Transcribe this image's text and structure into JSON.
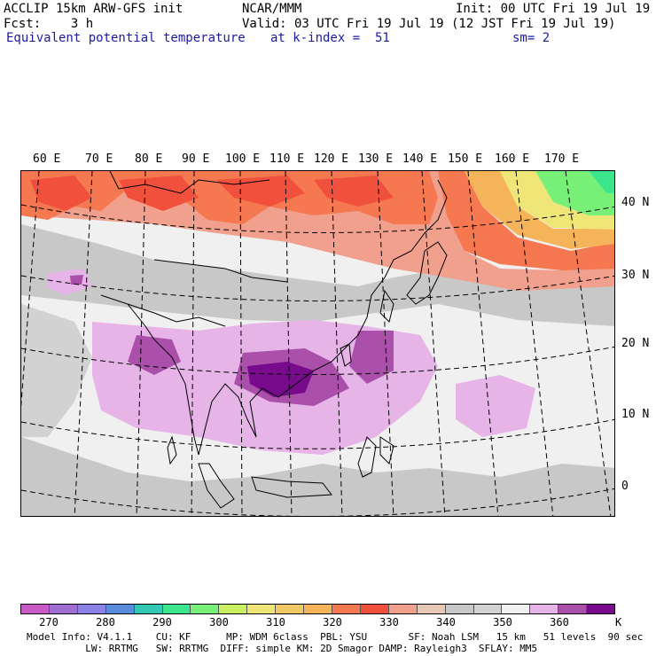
{
  "header": {
    "model": "ACCLIP 15km ARW-GFS init",
    "org": "NCAR/MMM",
    "init": "Init: 00 UTC Fri 19 Jul 19",
    "fcst": "Fcst:    3 h",
    "valid": "Valid: 03 UTC Fri 19 Jul 19 (12 JST Fri 19 Jul 19)",
    "field": "Equivalent potential temperature",
    "level": "at k-index =  51",
    "smooth": "sm= 2"
  },
  "map": {
    "lon_labels": [
      "60 E",
      "70 E",
      "80 E",
      "90 E",
      "100 E",
      "110 E",
      "120 E",
      "130 E",
      "140 E",
      "150 E",
      "160 E",
      "170 E"
    ],
    "lat_labels": [
      "40 N",
      "30 N",
      "20 N",
      "10 N",
      "0"
    ]
  },
  "colorbar": {
    "unit": "K",
    "ticks": [
      "270",
      "280",
      "290",
      "300",
      "310",
      "320",
      "330",
      "340",
      "350",
      "360"
    ],
    "colors": [
      "#c85ac8",
      "#a06ed2",
      "#8c82e6",
      "#5a8cdc",
      "#32c8b4",
      "#3ce68c",
      "#78f078",
      "#c8f060",
      "#f0e678",
      "#f0c864",
      "#f5b45a",
      "#f57850",
      "#f0503c",
      "#f0a08c",
      "#e6c8b4",
      "#c8c8c8",
      "#d2d2d2",
      "#f0f0f0",
      "#e6b4e6",
      "#aa50aa",
      "#780a8c"
    ]
  },
  "footer": {
    "line1": "Model Info: V4.1.1    CU: KF      MP: WDM 6class  PBL: YSU       SF: Noah LSM   15 km   51 levels  90 sec",
    "line2": "          LW: RRTMG   SW: RRTMG  DIFF: simple KM: 2D Smagor DAMP: Rayleigh3  SFLAY: MM5"
  }
}
